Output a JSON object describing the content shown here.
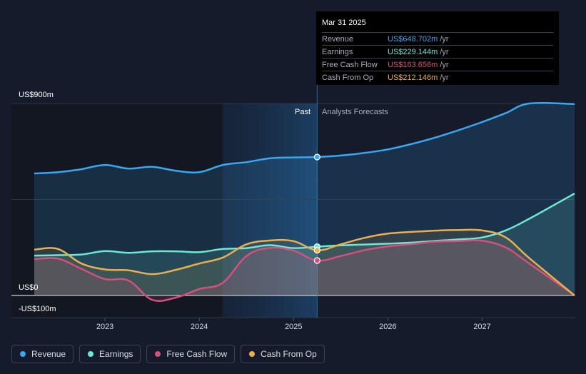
{
  "tooltip": {
    "date": "Mar 31 2025",
    "rows": [
      {
        "name": "Revenue",
        "value": "US$648.702m",
        "unit": "/yr",
        "color": "#3ba7f0"
      },
      {
        "name": "Earnings",
        "value": "US$229.144m",
        "unit": "/yr",
        "color": "#6ee7d4"
      },
      {
        "name": "Free Cash Flow",
        "value": "US$163.656m",
        "unit": "/yr",
        "color": "#d5507f"
      },
      {
        "name": "Cash From Op",
        "value": "US$212.146m",
        "unit": "/yr",
        "color": "#eab04f"
      }
    ]
  },
  "legend": [
    {
      "name": "Revenue",
      "color": "#3ba7f0"
    },
    {
      "name": "Earnings",
      "color": "#6ee7d4"
    },
    {
      "name": "Free Cash Flow",
      "color": "#d5507f"
    },
    {
      "name": "Cash From Op",
      "color": "#eab04f"
    }
  ],
  "chart_data": {
    "type": "line",
    "title": "",
    "xlabel": "",
    "ylabel": "",
    "y_tick_labels": [
      "US$900m",
      "US$0",
      "-US$100m"
    ],
    "ylim": [
      -100,
      900
    ],
    "xlim": [
      2022.25,
      2027.98
    ],
    "x_ticks": [
      2023,
      2024,
      2025,
      2026,
      2027
    ],
    "x_tick_labels": [
      "2023",
      "2024",
      "2025",
      "2026",
      "2027"
    ],
    "divider_x": 2025.25,
    "shade_start_x": 2024.25,
    "past_label": "Past",
    "forecast_label": "Analysts Forecasts",
    "series": [
      {
        "name": "Revenue",
        "color": "#3ba7f0",
        "points": [
          [
            2022.25,
            572
          ],
          [
            2022.5,
            578
          ],
          [
            2022.75,
            592
          ],
          [
            2023.0,
            612
          ],
          [
            2023.25,
            595
          ],
          [
            2023.5,
            603
          ],
          [
            2023.75,
            585
          ],
          [
            2024.0,
            578
          ],
          [
            2024.25,
            612
          ],
          [
            2024.5,
            625
          ],
          [
            2024.75,
            643
          ],
          [
            2025.0,
            647
          ],
          [
            2025.25,
            649
          ],
          [
            2025.5,
            656
          ],
          [
            2025.75,
            668
          ],
          [
            2026.0,
            685
          ],
          [
            2026.25,
            710
          ],
          [
            2026.5,
            740
          ],
          [
            2026.75,
            775
          ],
          [
            2027.0,
            813
          ],
          [
            2027.25,
            855
          ],
          [
            2027.5,
            900
          ],
          [
            2027.98,
            897
          ]
        ]
      },
      {
        "name": "Earnings",
        "color": "#6ee7d4",
        "points": [
          [
            2022.25,
            187
          ],
          [
            2022.5,
            189
          ],
          [
            2022.75,
            192
          ],
          [
            2023.0,
            208
          ],
          [
            2023.25,
            200
          ],
          [
            2023.5,
            207
          ],
          [
            2023.75,
            207
          ],
          [
            2024.0,
            203
          ],
          [
            2024.25,
            218
          ],
          [
            2024.5,
            222
          ],
          [
            2024.75,
            236
          ],
          [
            2025.0,
            222
          ],
          [
            2025.25,
            229
          ],
          [
            2025.5,
            235
          ],
          [
            2025.75,
            239
          ],
          [
            2026.0,
            243
          ],
          [
            2026.25,
            248
          ],
          [
            2026.5,
            256
          ],
          [
            2026.75,
            263
          ],
          [
            2027.0,
            272
          ],
          [
            2027.25,
            305
          ],
          [
            2027.5,
            360
          ],
          [
            2027.98,
            478
          ]
        ]
      },
      {
        "name": "Free Cash Flow",
        "color": "#d5507f",
        "points": [
          [
            2022.25,
            170
          ],
          [
            2022.5,
            173
          ],
          [
            2022.75,
            125
          ],
          [
            2023.0,
            77
          ],
          [
            2023.25,
            70
          ],
          [
            2023.5,
            -20
          ],
          [
            2023.75,
            -10
          ],
          [
            2024.0,
            30
          ],
          [
            2024.25,
            60
          ],
          [
            2024.5,
            185
          ],
          [
            2024.75,
            223
          ],
          [
            2025.0,
            210
          ],
          [
            2025.25,
            164
          ],
          [
            2025.5,
            185
          ],
          [
            2025.75,
            212
          ],
          [
            2026.0,
            230
          ],
          [
            2026.25,
            241
          ],
          [
            2026.5,
            252
          ],
          [
            2026.75,
            255
          ],
          [
            2027.0,
            257
          ],
          [
            2027.25,
            225
          ],
          [
            2027.5,
            150
          ],
          [
            2027.98,
            0
          ]
        ]
      },
      {
        "name": "Cash From Op",
        "color": "#eab04f",
        "points": [
          [
            2022.25,
            215
          ],
          [
            2022.5,
            218
          ],
          [
            2022.75,
            150
          ],
          [
            2023.0,
            122
          ],
          [
            2023.25,
            118
          ],
          [
            2023.5,
            100
          ],
          [
            2023.75,
            120
          ],
          [
            2024.0,
            150
          ],
          [
            2024.25,
            178
          ],
          [
            2024.5,
            240
          ],
          [
            2024.75,
            258
          ],
          [
            2025.0,
            255
          ],
          [
            2025.25,
            212
          ],
          [
            2025.5,
            240
          ],
          [
            2025.75,
            270
          ],
          [
            2026.0,
            290
          ],
          [
            2026.25,
            298
          ],
          [
            2026.5,
            304
          ],
          [
            2026.75,
            307
          ],
          [
            2027.0,
            305
          ],
          [
            2027.25,
            272
          ],
          [
            2027.5,
            175
          ],
          [
            2027.98,
            0
          ]
        ]
      }
    ]
  }
}
